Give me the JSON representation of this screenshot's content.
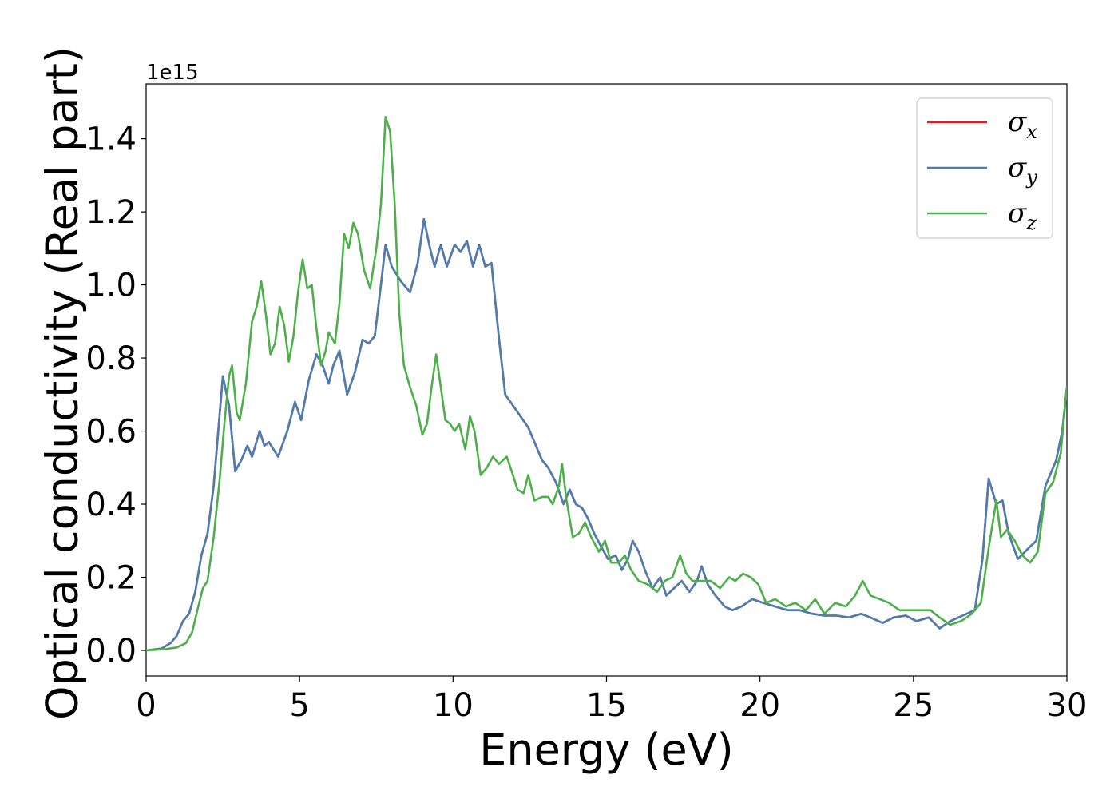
{
  "chart_data": {
    "type": "line",
    "xlabel": "Energy (eV)",
    "ylabel": "Optical conductivity (Real part)",
    "y_offset_label": "1e15",
    "xlim": [
      0,
      30
    ],
    "ylim": [
      -0.07,
      1.55
    ],
    "x_ticks": [
      0,
      5,
      10,
      15,
      20,
      25,
      30
    ],
    "y_ticks": [
      0.0,
      0.2,
      0.4,
      0.6,
      0.8,
      1.0,
      1.2,
      1.4
    ],
    "x_tick_labels": [
      "0",
      "5",
      "10",
      "15",
      "20",
      "25",
      "30"
    ],
    "y_tick_labels": [
      "0.0",
      "0.2",
      "0.4",
      "0.6",
      "0.8",
      "1.0",
      "1.2",
      "1.4"
    ],
    "grid": false,
    "legend_position": "top-right",
    "series": [
      {
        "name": "σx",
        "symbol": "σ",
        "subscript": "x",
        "color": "#e41a1c",
        "same_as": "σy"
      },
      {
        "name": "σy",
        "symbol": "σ",
        "subscript": "y",
        "color": "#4a7eb1",
        "points": [
          [
            0.0,
            0.0
          ],
          [
            0.5,
            0.005
          ],
          [
            0.8,
            0.02
          ],
          [
            1.0,
            0.04
          ],
          [
            1.2,
            0.08
          ],
          [
            1.4,
            0.1
          ],
          [
            1.6,
            0.16
          ],
          [
            1.8,
            0.26
          ],
          [
            2.0,
            0.32
          ],
          [
            2.2,
            0.45
          ],
          [
            2.4,
            0.65
          ],
          [
            2.5,
            0.75
          ],
          [
            2.7,
            0.67
          ],
          [
            2.9,
            0.49
          ],
          [
            3.1,
            0.52
          ],
          [
            3.3,
            0.56
          ],
          [
            3.45,
            0.53
          ],
          [
            3.7,
            0.6
          ],
          [
            3.85,
            0.56
          ],
          [
            4.0,
            0.57
          ],
          [
            4.3,
            0.53
          ],
          [
            4.6,
            0.6
          ],
          [
            4.85,
            0.68
          ],
          [
            5.05,
            0.63
          ],
          [
            5.3,
            0.74
          ],
          [
            5.55,
            0.81
          ],
          [
            5.75,
            0.78
          ],
          [
            5.95,
            0.73
          ],
          [
            6.1,
            0.78
          ],
          [
            6.3,
            0.82
          ],
          [
            6.55,
            0.7
          ],
          [
            6.8,
            0.76
          ],
          [
            7.05,
            0.85
          ],
          [
            7.25,
            0.84
          ],
          [
            7.45,
            0.86
          ],
          [
            7.65,
            1.0
          ],
          [
            7.8,
            1.11
          ],
          [
            8.0,
            1.05
          ],
          [
            8.3,
            1.01
          ],
          [
            8.6,
            0.98
          ],
          [
            8.85,
            1.06
          ],
          [
            9.05,
            1.18
          ],
          [
            9.25,
            1.1
          ],
          [
            9.4,
            1.05
          ],
          [
            9.6,
            1.11
          ],
          [
            9.8,
            1.05
          ],
          [
            10.05,
            1.11
          ],
          [
            10.25,
            1.09
          ],
          [
            10.45,
            1.12
          ],
          [
            10.65,
            1.05
          ],
          [
            10.85,
            1.11
          ],
          [
            11.05,
            1.05
          ],
          [
            11.25,
            1.06
          ],
          [
            11.5,
            0.85
          ],
          [
            11.7,
            0.7
          ],
          [
            11.95,
            0.67
          ],
          [
            12.2,
            0.64
          ],
          [
            12.45,
            0.61
          ],
          [
            12.65,
            0.57
          ],
          [
            12.9,
            0.52
          ],
          [
            13.1,
            0.5
          ],
          [
            13.35,
            0.46
          ],
          [
            13.6,
            0.4
          ],
          [
            13.8,
            0.44
          ],
          [
            14.0,
            0.4
          ],
          [
            14.2,
            0.39
          ],
          [
            14.4,
            0.36
          ],
          [
            14.6,
            0.32
          ],
          [
            14.85,
            0.28
          ],
          [
            15.05,
            0.25
          ],
          [
            15.3,
            0.26
          ],
          [
            15.5,
            0.22
          ],
          [
            15.7,
            0.25
          ],
          [
            15.85,
            0.3
          ],
          [
            16.05,
            0.27
          ],
          [
            16.25,
            0.22
          ],
          [
            16.5,
            0.17
          ],
          [
            16.75,
            0.2
          ],
          [
            16.95,
            0.15
          ],
          [
            17.2,
            0.17
          ],
          [
            17.45,
            0.19
          ],
          [
            17.7,
            0.16
          ],
          [
            17.95,
            0.19
          ],
          [
            18.1,
            0.23
          ],
          [
            18.3,
            0.18
          ],
          [
            18.55,
            0.15
          ],
          [
            18.85,
            0.12
          ],
          [
            19.1,
            0.11
          ],
          [
            19.4,
            0.12
          ],
          [
            19.75,
            0.14
          ],
          [
            20.1,
            0.13
          ],
          [
            20.5,
            0.12
          ],
          [
            20.9,
            0.11
          ],
          [
            21.3,
            0.11
          ],
          [
            21.7,
            0.1
          ],
          [
            22.1,
            0.095
          ],
          [
            22.5,
            0.095
          ],
          [
            22.9,
            0.09
          ],
          [
            23.3,
            0.1
          ],
          [
            23.6,
            0.09
          ],
          [
            24.0,
            0.075
          ],
          [
            24.35,
            0.09
          ],
          [
            24.75,
            0.095
          ],
          [
            25.1,
            0.08
          ],
          [
            25.5,
            0.09
          ],
          [
            25.85,
            0.06
          ],
          [
            26.2,
            0.08
          ],
          [
            26.6,
            0.095
          ],
          [
            27.0,
            0.11
          ],
          [
            27.25,
            0.25
          ],
          [
            27.45,
            0.47
          ],
          [
            27.7,
            0.4
          ],
          [
            27.9,
            0.41
          ],
          [
            28.1,
            0.32
          ],
          [
            28.4,
            0.25
          ],
          [
            28.75,
            0.28
          ],
          [
            29.0,
            0.3
          ],
          [
            29.3,
            0.45
          ],
          [
            29.65,
            0.52
          ],
          [
            29.85,
            0.6
          ],
          [
            30.0,
            0.72
          ]
        ]
      },
      {
        "name": "σz",
        "symbol": "σ",
        "subscript": "z",
        "color": "#4daf4a",
        "points": [
          [
            0.0,
            0.0
          ],
          [
            0.6,
            0.003
          ],
          [
            1.0,
            0.008
          ],
          [
            1.3,
            0.02
          ],
          [
            1.5,
            0.05
          ],
          [
            1.7,
            0.12
          ],
          [
            1.85,
            0.17
          ],
          [
            2.0,
            0.19
          ],
          [
            2.2,
            0.31
          ],
          [
            2.4,
            0.47
          ],
          [
            2.55,
            0.62
          ],
          [
            2.7,
            0.75
          ],
          [
            2.8,
            0.78
          ],
          [
            2.95,
            0.65
          ],
          [
            3.05,
            0.63
          ],
          [
            3.25,
            0.73
          ],
          [
            3.45,
            0.9
          ],
          [
            3.6,
            0.94
          ],
          [
            3.75,
            1.01
          ],
          [
            3.9,
            0.92
          ],
          [
            4.05,
            0.81
          ],
          [
            4.2,
            0.84
          ],
          [
            4.35,
            0.94
          ],
          [
            4.5,
            0.89
          ],
          [
            4.65,
            0.79
          ],
          [
            4.8,
            0.86
          ],
          [
            4.95,
            0.98
          ],
          [
            5.1,
            1.07
          ],
          [
            5.25,
            0.99
          ],
          [
            5.4,
            1.0
          ],
          [
            5.55,
            0.88
          ],
          [
            5.7,
            0.78
          ],
          [
            5.85,
            0.82
          ],
          [
            5.95,
            0.87
          ],
          [
            6.15,
            0.84
          ],
          [
            6.3,
            0.95
          ],
          [
            6.45,
            1.14
          ],
          [
            6.6,
            1.1
          ],
          [
            6.75,
            1.17
          ],
          [
            6.9,
            1.14
          ],
          [
            7.1,
            1.04
          ],
          [
            7.3,
            0.99
          ],
          [
            7.5,
            1.1
          ],
          [
            7.65,
            1.22
          ],
          [
            7.8,
            1.46
          ],
          [
            7.95,
            1.42
          ],
          [
            8.1,
            1.22
          ],
          [
            8.25,
            0.92
          ],
          [
            8.4,
            0.78
          ],
          [
            8.6,
            0.72
          ],
          [
            8.8,
            0.67
          ],
          [
            9.0,
            0.59
          ],
          [
            9.15,
            0.62
          ],
          [
            9.3,
            0.72
          ],
          [
            9.45,
            0.81
          ],
          [
            9.6,
            0.72
          ],
          [
            9.75,
            0.63
          ],
          [
            9.9,
            0.62
          ],
          [
            10.05,
            0.6
          ],
          [
            10.2,
            0.62
          ],
          [
            10.4,
            0.55
          ],
          [
            10.55,
            0.64
          ],
          [
            10.7,
            0.6
          ],
          [
            10.9,
            0.48
          ],
          [
            11.1,
            0.5
          ],
          [
            11.3,
            0.53
          ],
          [
            11.5,
            0.51
          ],
          [
            11.75,
            0.53
          ],
          [
            11.95,
            0.48
          ],
          [
            12.1,
            0.44
          ],
          [
            12.3,
            0.43
          ],
          [
            12.45,
            0.48
          ],
          [
            12.65,
            0.41
          ],
          [
            12.9,
            0.42
          ],
          [
            13.1,
            0.42
          ],
          [
            13.25,
            0.4
          ],
          [
            13.45,
            0.45
          ],
          [
            13.55,
            0.51
          ],
          [
            13.7,
            0.41
          ],
          [
            13.9,
            0.31
          ],
          [
            14.1,
            0.32
          ],
          [
            14.3,
            0.35
          ],
          [
            14.5,
            0.31
          ],
          [
            14.75,
            0.27
          ],
          [
            14.95,
            0.3
          ],
          [
            15.15,
            0.24
          ],
          [
            15.4,
            0.24
          ],
          [
            15.6,
            0.26
          ],
          [
            15.8,
            0.22
          ],
          [
            16.05,
            0.19
          ],
          [
            16.35,
            0.18
          ],
          [
            16.65,
            0.16
          ],
          [
            16.9,
            0.19
          ],
          [
            17.15,
            0.2
          ],
          [
            17.4,
            0.26
          ],
          [
            17.6,
            0.21
          ],
          [
            17.8,
            0.19
          ],
          [
            18.1,
            0.19
          ],
          [
            18.4,
            0.19
          ],
          [
            18.7,
            0.17
          ],
          [
            19.0,
            0.2
          ],
          [
            19.2,
            0.19
          ],
          [
            19.45,
            0.21
          ],
          [
            19.7,
            0.2
          ],
          [
            19.95,
            0.18
          ],
          [
            20.2,
            0.13
          ],
          [
            20.5,
            0.14
          ],
          [
            20.85,
            0.12
          ],
          [
            21.15,
            0.13
          ],
          [
            21.5,
            0.11
          ],
          [
            21.8,
            0.14
          ],
          [
            22.1,
            0.1
          ],
          [
            22.45,
            0.13
          ],
          [
            22.8,
            0.12
          ],
          [
            23.1,
            0.15
          ],
          [
            23.35,
            0.19
          ],
          [
            23.6,
            0.15
          ],
          [
            23.9,
            0.14
          ],
          [
            24.2,
            0.13
          ],
          [
            24.55,
            0.11
          ],
          [
            24.85,
            0.11
          ],
          [
            25.15,
            0.11
          ],
          [
            25.55,
            0.11
          ],
          [
            25.85,
            0.09
          ],
          [
            26.2,
            0.07
          ],
          [
            26.55,
            0.08
          ],
          [
            26.9,
            0.1
          ],
          [
            27.2,
            0.13
          ],
          [
            27.45,
            0.28
          ],
          [
            27.7,
            0.41
          ],
          [
            27.85,
            0.31
          ],
          [
            28.05,
            0.33
          ],
          [
            28.3,
            0.3
          ],
          [
            28.55,
            0.26
          ],
          [
            28.8,
            0.24
          ],
          [
            29.05,
            0.27
          ],
          [
            29.3,
            0.43
          ],
          [
            29.55,
            0.46
          ],
          [
            29.8,
            0.54
          ],
          [
            30.0,
            0.72
          ]
        ]
      }
    ]
  }
}
